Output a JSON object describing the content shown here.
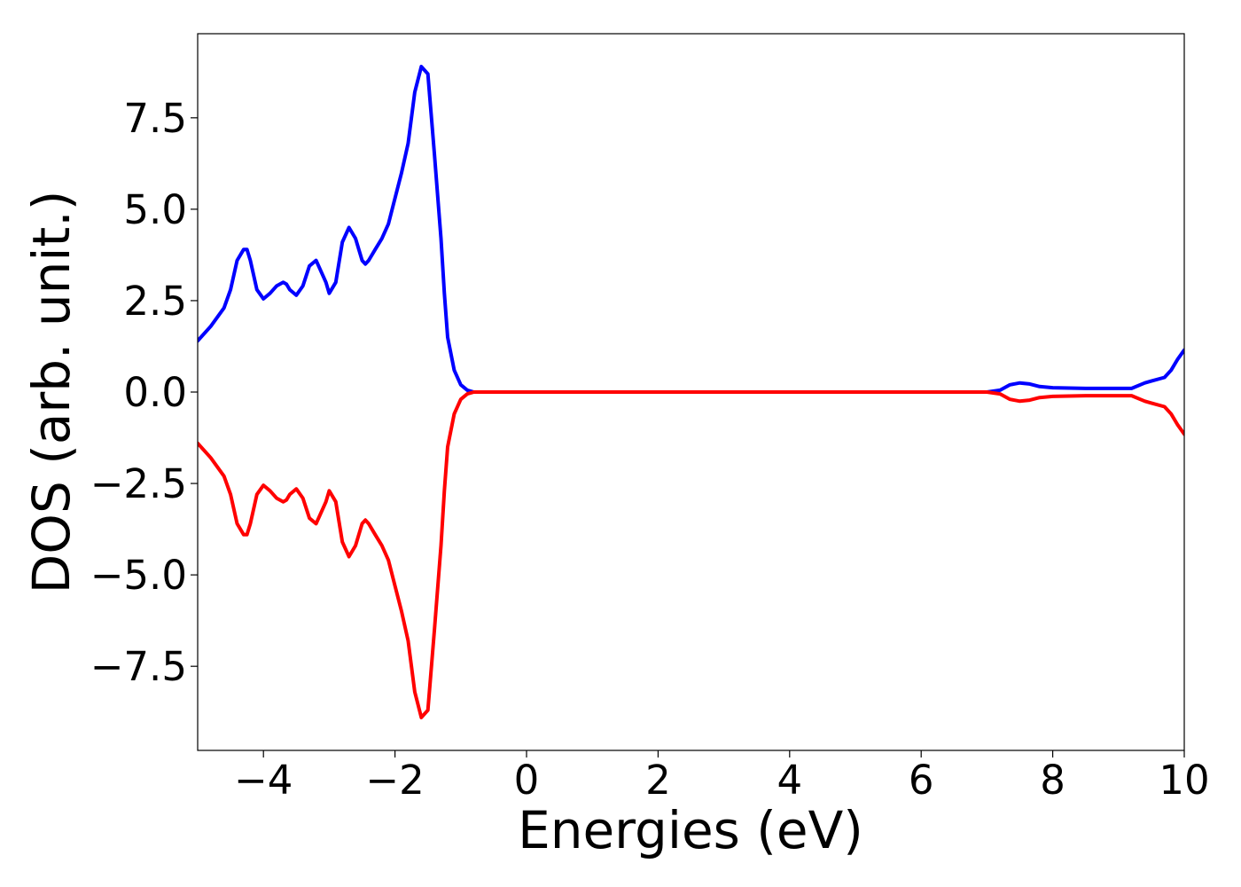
{
  "chart_data": {
    "type": "line",
    "title": "",
    "xlabel": "Energies (eV)",
    "ylabel": "DOS (arb. unit.)",
    "xlim": [
      -5,
      10
    ],
    "ylim": [
      -9.8,
      9.8
    ],
    "xticks": [
      -4,
      -2,
      0,
      2,
      4,
      6,
      8,
      10
    ],
    "xtick_labels": [
      "−4",
      "−2",
      "0",
      "2",
      "4",
      "6",
      "8",
      "10"
    ],
    "yticks": [
      7.5,
      5.0,
      2.5,
      0.0,
      -2.5,
      -5.0,
      -7.5
    ],
    "ytick_labels": [
      "7.5",
      "5.0",
      "2.5",
      "0.0",
      "−2.5",
      "−5.0",
      "−7.5"
    ],
    "grid": false,
    "legend": "none",
    "colors": {
      "spin_up": "#0000ff",
      "spin_down": "#ff0000",
      "frame": "#000000"
    },
    "series": [
      {
        "color": "#0000ff",
        "x": [
          -5.0,
          -4.8,
          -4.6,
          -4.5,
          -4.4,
          -4.3,
          -4.25,
          -4.2,
          -4.1,
          -4.0,
          -3.9,
          -3.8,
          -3.7,
          -3.65,
          -3.6,
          -3.5,
          -3.4,
          -3.3,
          -3.2,
          -3.1,
          -3.05,
          -3.0,
          -2.9,
          -2.8,
          -2.7,
          -2.6,
          -2.5,
          -2.45,
          -2.4,
          -2.3,
          -2.2,
          -2.1,
          -2.0,
          -1.9,
          -1.8,
          -1.7,
          -1.6,
          -1.5,
          -1.4,
          -1.3,
          -1.25,
          -1.2,
          -1.1,
          -1.0,
          -0.9,
          -0.8,
          -0.7,
          -0.6,
          -0.5,
          0.0,
          2.0,
          4.0,
          6.0,
          7.0,
          7.2,
          7.35,
          7.5,
          7.65,
          7.8,
          8.0,
          8.5,
          9.0,
          9.2,
          9.4,
          9.5,
          9.7,
          9.8,
          9.9,
          10.0
        ],
        "values": [
          1.4,
          1.8,
          2.3,
          2.8,
          3.6,
          3.9,
          3.9,
          3.6,
          2.8,
          2.55,
          2.7,
          2.9,
          3.0,
          2.95,
          2.8,
          2.65,
          2.9,
          3.45,
          3.6,
          3.2,
          3.0,
          2.7,
          3.0,
          4.1,
          4.5,
          4.2,
          3.6,
          3.5,
          3.6,
          3.9,
          4.2,
          4.6,
          5.3,
          6.0,
          6.8,
          8.2,
          8.9,
          8.7,
          6.5,
          4.2,
          2.7,
          1.5,
          0.6,
          0.2,
          0.05,
          0.0,
          0.0,
          0.0,
          0.0,
          0.0,
          0.0,
          0.0,
          0.0,
          0.0,
          0.05,
          0.2,
          0.25,
          0.22,
          0.15,
          0.12,
          0.1,
          0.1,
          0.1,
          0.25,
          0.3,
          0.4,
          0.6,
          0.9,
          1.15
        ]
      },
      {
        "color": "#ff0000",
        "x": [
          -5.0,
          -4.8,
          -4.6,
          -4.5,
          -4.4,
          -4.3,
          -4.25,
          -4.2,
          -4.1,
          -4.0,
          -3.9,
          -3.8,
          -3.7,
          -3.65,
          -3.6,
          -3.5,
          -3.4,
          -3.3,
          -3.2,
          -3.1,
          -3.05,
          -3.0,
          -2.9,
          -2.8,
          -2.7,
          -2.6,
          -2.5,
          -2.45,
          -2.4,
          -2.3,
          -2.2,
          -2.1,
          -2.0,
          -1.9,
          -1.8,
          -1.7,
          -1.6,
          -1.5,
          -1.4,
          -1.3,
          -1.25,
          -1.2,
          -1.1,
          -1.0,
          -0.9,
          -0.8,
          -0.7,
          -0.6,
          -0.5,
          0.0,
          2.0,
          4.0,
          6.0,
          7.0,
          7.2,
          7.35,
          7.5,
          7.65,
          7.8,
          8.0,
          8.5,
          9.0,
          9.2,
          9.4,
          9.5,
          9.7,
          9.8,
          9.9,
          10.0
        ],
        "values": [
          -1.4,
          -1.8,
          -2.3,
          -2.8,
          -3.6,
          -3.9,
          -3.9,
          -3.6,
          -2.8,
          -2.55,
          -2.7,
          -2.9,
          -3.0,
          -2.95,
          -2.8,
          -2.65,
          -2.9,
          -3.45,
          -3.6,
          -3.2,
          -3.0,
          -2.7,
          -3.0,
          -4.1,
          -4.5,
          -4.2,
          -3.6,
          -3.5,
          -3.6,
          -3.9,
          -4.2,
          -4.6,
          -5.3,
          -6.0,
          -6.8,
          -8.2,
          -8.9,
          -8.7,
          -6.5,
          -4.2,
          -2.7,
          -1.5,
          -0.6,
          -0.2,
          -0.05,
          0.0,
          0.0,
          0.0,
          0.0,
          0.0,
          0.0,
          0.0,
          0.0,
          0.0,
          -0.05,
          -0.2,
          -0.25,
          -0.22,
          -0.15,
          -0.12,
          -0.1,
          -0.1,
          -0.1,
          -0.25,
          -0.3,
          -0.4,
          -0.6,
          -0.9,
          -1.15
        ]
      }
    ]
  }
}
